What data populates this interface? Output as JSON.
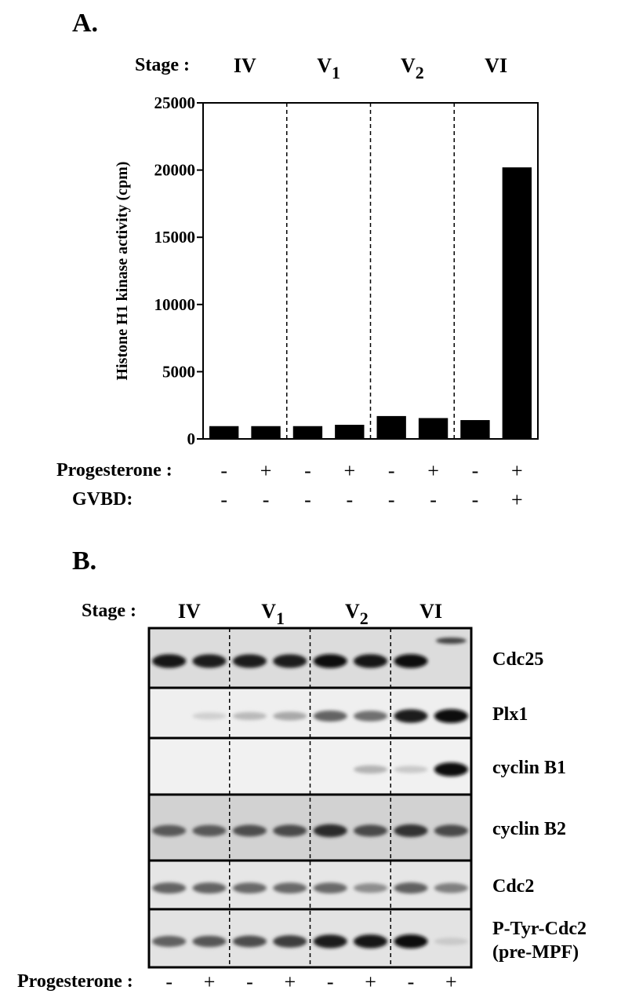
{
  "panel_a": {
    "label": "A.",
    "stage_prefix": "Stage :",
    "stages": [
      {
        "roman": "IV",
        "sub": ""
      },
      {
        "roman": "V",
        "sub": "1"
      },
      {
        "roman": "V",
        "sub": "2"
      },
      {
        "roman": "VI",
        "sub": ""
      }
    ],
    "row_labels": {
      "progesterone": "Progesterone :",
      "gvbd": "GVBD:"
    },
    "progesterone": [
      "-",
      "+",
      "-",
      "+",
      "-",
      "+",
      "-",
      "+"
    ],
    "gvbd": [
      "-",
      "-",
      "-",
      "-",
      "-",
      "-",
      "-",
      "+"
    ]
  },
  "panel_b": {
    "label": "B.",
    "stage_prefix": "Stage :",
    "stages": [
      {
        "roman": "IV",
        "sub": ""
      },
      {
        "roman": "V",
        "sub": "1"
      },
      {
        "roman": "V",
        "sub": "2"
      },
      {
        "roman": "VI",
        "sub": ""
      }
    ],
    "blots": [
      {
        "name": "Cdc25",
        "line2": "",
        "bg": "#dcdcdc",
        "bands": [
          0.95,
          0.92,
          0.92,
          0.92,
          0.98,
          0.95,
          0.98,
          0.0
        ],
        "shifted": 0.75
      },
      {
        "name": "Plx1",
        "line2": "",
        "bg": "#efefef",
        "bands": [
          0.0,
          0.12,
          0.22,
          0.3,
          0.6,
          0.55,
          0.92,
          0.98
        ]
      },
      {
        "name": "cyclin B1",
        "line2": "",
        "bg": "#f1f1f1",
        "bands": [
          0.0,
          0.0,
          0.0,
          0.0,
          0.0,
          0.25,
          0.15,
          0.98
        ]
      },
      {
        "name": "cyclin B2",
        "line2": "",
        "bg": "#d2d2d2",
        "bands": [
          0.65,
          0.65,
          0.7,
          0.72,
          0.85,
          0.72,
          0.82,
          0.72
        ]
      },
      {
        "name": "Cdc2",
        "line2": "",
        "bg": "#e6e6e6",
        "bands": [
          0.6,
          0.6,
          0.58,
          0.58,
          0.58,
          0.42,
          0.62,
          0.48
        ]
      },
      {
        "name": "P-Tyr-Cdc2",
        "line2": "(pre-MPF)",
        "bg": "#e3e3e3",
        "bands": [
          0.62,
          0.66,
          0.7,
          0.78,
          0.92,
          0.95,
          0.98,
          0.15
        ]
      }
    ],
    "progesterone_label": "Progesterone :",
    "progesterone": [
      "-",
      "+",
      "-",
      "+",
      "-",
      "+",
      "-",
      "+"
    ]
  },
  "chart_data": {
    "type": "bar",
    "title": "",
    "xlabel": "",
    "ylabel": "Histone H1 kinase activity (cpm)",
    "ylim": [
      0,
      25000
    ],
    "yticks": [
      "0",
      "5000",
      "10000",
      "15000",
      "20000",
      "25000"
    ],
    "categories": [
      "IV -",
      "IV +",
      "V1 -",
      "V1 +",
      "V2 -",
      "V2 +",
      "VI -",
      "VI +"
    ],
    "values": [
      950,
      950,
      950,
      1050,
      1700,
      1550,
      1400,
      20200
    ],
    "grid": false,
    "colors": {
      "bar": "#000000"
    }
  }
}
